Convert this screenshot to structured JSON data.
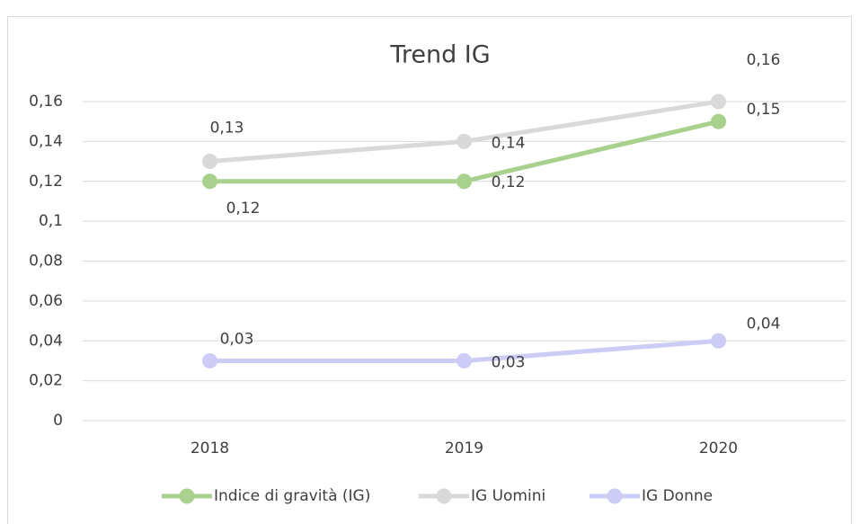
{
  "chart_data": {
    "type": "line",
    "title": "Trend IG",
    "categories": [
      "2018",
      "2019",
      "2020"
    ],
    "series": [
      {
        "name": "Indice di gravità (IG)",
        "color": "#a9d18e",
        "values": [
          0.12,
          0.12,
          0.15
        ],
        "value_labels": [
          "0,12",
          "0,12",
          "0,15"
        ]
      },
      {
        "name": "IG Uomini",
        "color": "#d9d9d9",
        "values": [
          0.13,
          0.14,
          0.16
        ],
        "value_labels": [
          "0,13",
          "0,14",
          "0,16"
        ]
      },
      {
        "name": "IG Donne",
        "color": "#ccccf7",
        "values": [
          0.03,
          0.03,
          0.04
        ],
        "value_labels": [
          "0,03",
          "0,03",
          "0,04"
        ]
      }
    ],
    "ylim": [
      0,
      0.16
    ],
    "yticks": [
      0,
      {
        "value": 0.02,
        "label": "0,02"
      },
      {
        "value": 0.04,
        "label": "0,04"
      },
      {
        "value": 0.06,
        "label": "0,06"
      },
      {
        "value": 0.08,
        "label": "0,08"
      },
      {
        "value": 0.1,
        "label": "0,1"
      },
      {
        "value": 0.12,
        "label": "0,12"
      },
      {
        "value": 0.14,
        "label": "0,14"
      },
      {
        "value": 0.16,
        "label": "0,16"
      }
    ],
    "grid": true,
    "legend": "bottom"
  }
}
